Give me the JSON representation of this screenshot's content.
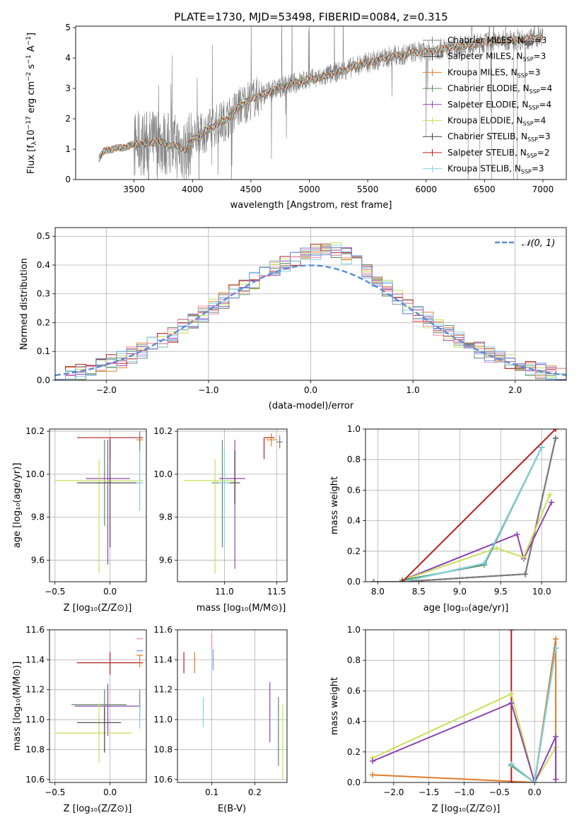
{
  "colors": {
    "Chabrier MILES": "#7f7f7f",
    "Salpeter MILES": "#202020",
    "Kroupa MILES": "#e07b2a",
    "Chabrier ELODIE": "#5c8a5c",
    "Salpeter ELODIE": "#8e44ad",
    "Kroupa ELODIE": "#c8e05a",
    "Chabrier STELIB": "#404040",
    "Salpeter STELIB": "#b22222",
    "Kroupa STELIB": "#7fd6e0",
    "gauss": "#5b8bd6",
    "pink": "#f08cb0",
    "blue": "#6a9ae8"
  },
  "chart_data": [
    {
      "id": "spectrum",
      "type": "line",
      "title": "PLATE=1730, MJD=53498, FIBERID=0084, z=0.315",
      "xlabel": "wavelength [Angstrom, rest frame]",
      "ylabel_main": "Flux [f",
      "ylabel_sub": "λ",
      "ylabel_rest": "10",
      "ylabel_exp": "-17",
      "ylabel_tail": " erg cm",
      "xlim": [
        3000,
        7200
      ],
      "ylim": [
        0,
        5.05
      ],
      "xticks": [
        3500,
        4000,
        4500,
        5000,
        5500,
        6000,
        6500,
        7000
      ],
      "yticks": [
        0,
        1,
        2,
        3,
        4,
        5
      ],
      "grid": false,
      "legend_position": "upper-right",
      "legend": [
        {
          "name": "Chabrier MILES",
          "nssp": "3"
        },
        {
          "name": "Salpeter MILES",
          "nssp": "3"
        },
        {
          "name": "Kroupa MILES",
          "nssp": "3"
        },
        {
          "name": "Chabrier ELODIE",
          "nssp": "4"
        },
        {
          "name": "Salpeter ELODIE",
          "nssp": "4"
        },
        {
          "name": "Kroupa ELODIE",
          "nssp": "4"
        },
        {
          "name": "Chabrier STELIB",
          "nssp": "3"
        },
        {
          "name": "Salpeter STELIB",
          "nssp": "2"
        },
        {
          "name": "Kroupa STELIB",
          "nssp": "3"
        }
      ],
      "continuum": [
        [
          3200,
          0.7
        ],
        [
          3250,
          0.95
        ],
        [
          3300,
          1.0
        ],
        [
          3400,
          1.05
        ],
        [
          3500,
          1.15
        ],
        [
          3600,
          1.2
        ],
        [
          3700,
          1.25
        ],
        [
          3800,
          1.15
        ],
        [
          3900,
          1.05
        ],
        [
          3950,
          1.0
        ],
        [
          4000,
          1.3
        ],
        [
          4100,
          1.55
        ],
        [
          4200,
          1.8
        ],
        [
          4300,
          2.0
        ],
        [
          4400,
          2.4
        ],
        [
          4500,
          2.65
        ],
        [
          4600,
          2.8
        ],
        [
          4700,
          2.95
        ],
        [
          4800,
          3.1
        ],
        [
          4900,
          3.2
        ],
        [
          5000,
          3.3
        ],
        [
          5100,
          3.35
        ],
        [
          5200,
          3.5
        ],
        [
          5300,
          3.6
        ],
        [
          5400,
          3.75
        ],
        [
          5500,
          3.85
        ],
        [
          5600,
          3.95
        ],
        [
          5700,
          4.05
        ],
        [
          5800,
          4.1
        ],
        [
          5900,
          4.2
        ],
        [
          6000,
          4.2
        ],
        [
          6200,
          4.35
        ],
        [
          6400,
          4.45
        ],
        [
          6600,
          4.55
        ],
        [
          6800,
          4.6
        ],
        [
          7000,
          4.7
        ]
      ]
    },
    {
      "id": "residuals",
      "type": "histogram",
      "xlabel": "(data-model)/error",
      "ylabel": "Normed distribution",
      "xlim": [
        -2.5,
        2.5
      ],
      "ylim": [
        0,
        0.53
      ],
      "xticks": [
        -2,
        -1,
        0,
        1,
        2
      ],
      "yticks": [
        0.0,
        0.1,
        0.2,
        0.3,
        0.4,
        0.5
      ],
      "grid": true,
      "legend_label": "𝒩(0, 1)",
      "legend_position": "upper-right",
      "bin_width": 0.1,
      "bin_start": -2.5,
      "base_values": [
        0.015,
        0.03,
        0.03,
        0.035,
        0.04,
        0.05,
        0.06,
        0.065,
        0.08,
        0.09,
        0.1,
        0.11,
        0.13,
        0.16,
        0.19,
        0.21,
        0.23,
        0.24,
        0.25,
        0.27,
        0.3,
        0.31,
        0.32,
        0.33,
        0.35,
        0.34,
        0.36,
        0.37,
        0.39,
        0.4,
        0.42,
        0.43,
        0.41,
        0.4,
        0.42,
        0.4,
        0.38,
        0.36,
        0.35,
        0.33,
        0.34,
        0.35,
        0.32,
        0.28,
        0.27,
        0.26,
        0.25,
        0.24,
        0.21,
        0.2,
        0.18,
        0.15,
        0.14,
        0.12,
        0.1,
        0.09,
        0.08,
        0.06,
        0.05,
        0.04,
        0.04,
        0.045,
        0.04,
        0.035,
        0.03,
        0.03,
        0.025,
        0.02,
        0.02,
        0.015,
        0.01,
        0.01,
        0.005,
        0.005,
        0.005,
        0.005,
        0.005,
        0.005,
        0.005,
        0.005
      ]
    },
    {
      "id": "age-vs-Z",
      "type": "errorbar",
      "xlabel": "Z [log₁₀(Z/Z⊙)]",
      "ylabel": "age  [log₁₀(age/yr)]",
      "xlim": [
        -0.55,
        0.33
      ],
      "ylim": [
        9.5,
        10.21
      ],
      "xticks": [
        -0.5,
        0.0
      ],
      "yticks": [
        9.6,
        9.8,
        10.0,
        10.2
      ],
      "grid": true,
      "points": [
        {
          "s": "Salpeter STELIB",
          "x": 0.0,
          "xe": [
            0.3,
            0.3
          ],
          "y": 10.17,
          "ye": [
            0.1,
            0.0
          ]
        },
        {
          "s": "Kroupa MILES",
          "x": 0.27,
          "xe": [
            0.03,
            0.03
          ],
          "y": 10.16,
          "ye": [
            0.02,
            0.02
          ]
        },
        {
          "s": "Chabrier MILES",
          "x": 0.27,
          "xe": [
            0.0,
            0.0
          ],
          "y": 10.15,
          "ye": [
            0.05,
            0.05
          ]
        },
        {
          "s": "Chabrier ELODIE",
          "x": -0.05,
          "xe": [
            0.1,
            0.1
          ],
          "y": 9.96,
          "ye": [
            0.2,
            0.2
          ]
        },
        {
          "s": "Salpeter ELODIE",
          "x": -0.02,
          "xe": [
            0.2,
            0.2
          ],
          "y": 9.98,
          "ye": [
            0.4,
            0.18
          ]
        },
        {
          "s": "Kroupa ELODIE",
          "x": -0.1,
          "xe": [
            0.4,
            0.4
          ],
          "y": 9.97,
          "ye": [
            0.43,
            0.1
          ]
        },
        {
          "s": "Chabrier STELIB",
          "x": 0.0,
          "xe": [
            0.3,
            0.3
          ],
          "y": 9.96,
          "ye": [
            0.3,
            0.2
          ]
        },
        {
          "s": "Kroupa STELIB",
          "x": 0.27,
          "xe": [
            0.03,
            0.03
          ],
          "y": 9.96,
          "ye": [
            0.13,
            0.15
          ]
        }
      ]
    },
    {
      "id": "age-vs-mass",
      "type": "errorbar",
      "xlabel": "mass [log₁₀(M/M⊙)]",
      "ylabel": "",
      "xlim": [
        10.55,
        11.6
      ],
      "ylim": [
        9.5,
        10.21
      ],
      "xticks": [
        11.0,
        11.5
      ],
      "yticks": [
        9.6,
        9.8,
        10.0,
        10.2
      ],
      "grid": true,
      "points": [
        {
          "s": "Salpeter STELIB",
          "x": 11.38,
          "xe": [
            0.0,
            0.1
          ],
          "y": 10.17,
          "ye": [
            0.1,
            0.0
          ]
        },
        {
          "s": "Kroupa MILES",
          "x": 11.45,
          "xe": [
            0.05,
            0.05
          ],
          "y": 10.16,
          "ye": [
            0.03,
            0.03
          ]
        },
        {
          "s": "Chabrier MILES",
          "x": 11.53,
          "xe": [
            0.03,
            0.03
          ],
          "y": 10.15,
          "ye": [
            0.03,
            0.03
          ]
        },
        {
          "s": "Chabrier ELODIE",
          "x": 10.98,
          "xe": [
            0.1,
            0.1
          ],
          "y": 9.96,
          "ye": [
            0.3,
            0.2
          ]
        },
        {
          "s": "Salpeter ELODIE",
          "x": 11.1,
          "xe": [
            0.15,
            0.1
          ],
          "y": 9.98,
          "ye": [
            0.42,
            0.18
          ]
        },
        {
          "s": "Kroupa ELODIE",
          "x": 10.91,
          "xe": [
            0.3,
            0.2
          ],
          "y": 9.97,
          "ye": [
            0.43,
            0.1
          ]
        },
        {
          "s": "Chabrier STELIB",
          "x": 11.1,
          "xe": [
            0.1,
            0.05
          ],
          "y": 9.96,
          "ye": [
            0.1,
            0.15
          ]
        },
        {
          "s": "Kroupa STELIB",
          "x": 11.0,
          "xe": [
            0.05,
            0.05
          ],
          "y": 9.96,
          "ye": [
            0.3,
            0.15
          ]
        }
      ]
    },
    {
      "id": "mass-weight-vs-age",
      "type": "line",
      "xlabel": "age  [log₁₀(age/yr)]",
      "ylabel": "mass weight",
      "xlim": [
        7.85,
        10.3
      ],
      "ylim": [
        0,
        1.0
      ],
      "xticks": [
        8.0,
        8.5,
        9.0,
        9.5,
        10.0
      ],
      "yticks": [
        0.0,
        0.2,
        0.4,
        0.6,
        0.8,
        1.0
      ],
      "grid": true,
      "series": [
        {
          "s": "Kroupa MILES",
          "x": [
            7.95,
            8.3,
            9.8,
            10.17
          ],
          "y": [
            0.0,
            0.0,
            0.05,
            0.94
          ]
        },
        {
          "s": "Salpeter MILES",
          "x": [
            7.95,
            8.3,
            9.8,
            10.17
          ],
          "y": [
            0.0,
            0.0,
            0.05,
            0.94
          ]
        },
        {
          "s": "Chabrier MILES",
          "x": [
            7.95,
            8.3,
            9.8,
            10.17
          ],
          "y": [
            0.0,
            0.0,
            0.05,
            0.94
          ]
        },
        {
          "s": "Salpeter ELODIE",
          "x": [
            8.3,
            9.7,
            9.78,
            10.12
          ],
          "y": [
            0.01,
            0.31,
            0.15,
            0.52
          ]
        },
        {
          "s": "Kroupa ELODIE",
          "x": [
            8.3,
            9.45,
            9.78,
            10.1
          ],
          "y": [
            0.01,
            0.22,
            0.16,
            0.57
          ]
        },
        {
          "s": "Chabrier ELODIE",
          "x": [
            8.3,
            9.3,
            10.0
          ],
          "y": [
            0.01,
            0.11,
            0.88
          ]
        },
        {
          "s": "Chabrier STELIB",
          "x": [
            8.3,
            9.3,
            10.0
          ],
          "y": [
            0.0,
            0.12,
            0.88
          ]
        },
        {
          "s": "Kroupa STELIB",
          "x": [
            8.3,
            9.3,
            10.0
          ],
          "y": [
            0.0,
            0.12,
            0.88
          ]
        },
        {
          "s": "Salpeter STELIB",
          "x": [
            8.3,
            10.17
          ],
          "y": [
            0.0,
            1.0
          ]
        }
      ]
    },
    {
      "id": "mass-vs-Z",
      "type": "errorbar",
      "xlabel": "Z [log₁₀(Z/Z⊙)]",
      "ylabel": "mass [log₁₀(M/M⊙)]",
      "xlim": [
        -0.55,
        0.33
      ],
      "ylim": [
        10.58,
        11.6
      ],
      "xticks": [
        -0.5,
        0.0
      ],
      "yticks": [
        10.6,
        10.8,
        11.0,
        11.2,
        11.4,
        11.6
      ],
      "grid": true,
      "points": [
        {
          "s": "Salpeter STELIB",
          "x": 0.0,
          "xe": [
            0.3,
            0.3
          ],
          "y": 11.38,
          "ye": [
            0.08,
            0.07
          ]
        },
        {
          "s": "pink",
          "x": 0.27,
          "xe": [
            0.03,
            0.03
          ],
          "y": 11.54,
          "ye": [
            0.0,
            0.0
          ]
        },
        {
          "s": "blue",
          "x": 0.27,
          "xe": [
            0.03,
            0.03
          ],
          "y": 11.46,
          "ye": [
            0.0,
            0.0
          ]
        },
        {
          "s": "Kroupa MILES",
          "x": 0.27,
          "xe": [
            0.03,
            0.03
          ],
          "y": 11.43,
          "ye": [
            0.08,
            0.0
          ]
        },
        {
          "s": "Chabrier ELODIE",
          "x": -0.05,
          "xe": [
            0.3,
            0.2
          ],
          "y": 11.1,
          "ye": [
            0.1,
            0.1
          ]
        },
        {
          "s": "Salpeter ELODIE",
          "x": -0.02,
          "xe": [
            0.3,
            0.3
          ],
          "y": 11.09,
          "ye": [
            0.2,
            0.15
          ]
        },
        {
          "s": "Kroupa ELODIE",
          "x": -0.1,
          "xe": [
            0.4,
            0.3
          ],
          "y": 10.91,
          "ye": [
            0.2,
            0.2
          ]
        },
        {
          "s": "Chabrier STELIB",
          "x": -0.05,
          "xe": [
            0.25,
            0.15
          ],
          "y": 10.98,
          "ye": [
            0.2,
            0.1
          ]
        },
        {
          "s": "Chabrier MILES",
          "x": 0.27,
          "xe": [
            0.0,
            0.0
          ],
          "y": 11.1,
          "ye": [
            0.1,
            0.1
          ]
        },
        {
          "s": "Kroupa STELIB",
          "x": 0.27,
          "xe": [
            0.0,
            0.0
          ],
          "y": 11.0,
          "ye": [
            0.06,
            0.1
          ]
        }
      ]
    },
    {
      "id": "mass-vs-EBV",
      "type": "errorbar",
      "xlabel": "E(B-V)",
      "ylabel": "",
      "xlim": [
        0.02,
        0.275
      ],
      "ylim": [
        10.58,
        11.6
      ],
      "xticks": [
        0.1,
        0.2
      ],
      "yticks": [
        10.6,
        10.8,
        11.0,
        11.2,
        11.4,
        11.6
      ],
      "grid": true,
      "points": [
        {
          "s": "Salpeter STELIB",
          "x": 0.035,
          "xe": [
            0,
            0
          ],
          "y": 11.38,
          "ye": [
            0.07,
            0.07
          ]
        },
        {
          "s": "Kroupa MILES",
          "x": 0.06,
          "xe": [
            0,
            0
          ],
          "y": 11.38,
          "ye": [
            0.07,
            0.07
          ]
        },
        {
          "s": "pink",
          "x": 0.1,
          "xe": [
            0,
            0
          ],
          "y": 11.52,
          "ye": [
            0.05,
            0.05
          ]
        },
        {
          "s": "blue",
          "x": 0.103,
          "xe": [
            0,
            0
          ],
          "y": 11.4,
          "ye": [
            0.07,
            0.07
          ]
        },
        {
          "s": "Kroupa STELIB",
          "x": 0.08,
          "xe": [
            0,
            0
          ],
          "y": 11.05,
          "ye": [
            0.1,
            0.1
          ]
        },
        {
          "s": "Salpeter ELODIE",
          "x": 0.235,
          "xe": [
            0,
            0
          ],
          "y": 11.05,
          "ye": [
            0.2,
            0.2
          ]
        },
        {
          "s": "Chabrier ELODIE",
          "x": 0.255,
          "xe": [
            0,
            0
          ],
          "y": 10.92,
          "ye": [
            0.23,
            0.23
          ]
        },
        {
          "s": "Kroupa ELODIE",
          "x": 0.265,
          "xe": [
            0,
            0
          ],
          "y": 10.85,
          "ye": [
            0.25,
            0.25
          ]
        }
      ]
    },
    {
      "id": "mass-weight-vs-Z",
      "type": "line",
      "xlabel": "Z [log₁₀(Z/Z⊙)]",
      "ylabel": "mass weight",
      "xlim": [
        -2.4,
        0.45
      ],
      "ylim": [
        0,
        1.0
      ],
      "xticks": [
        -2.0,
        -1.5,
        -1.0,
        -0.5,
        0.0
      ],
      "yticks": [
        0.0,
        0.2,
        0.4,
        0.6,
        0.8,
        1.0
      ],
      "grid": true,
      "series": [
        {
          "s": "Kroupa MILES",
          "x": [
            -2.3,
            0.0,
            0.3,
            0.3
          ],
          "y": [
            0.05,
            0.0,
            0.94,
            0.02
          ]
        },
        {
          "s": "Salpeter STELIB",
          "x": [
            -0.33,
            -0.33
          ],
          "y": [
            0.0,
            1.0
          ]
        },
        {
          "s": "Kroupa ELODIE",
          "x": [
            -2.3,
            -0.33,
            0.0,
            0.3,
            0.3
          ],
          "y": [
            0.16,
            0.58,
            0.0,
            0.23,
            0.02
          ]
        },
        {
          "s": "Salpeter ELODIE",
          "x": [
            -2.3,
            -0.33,
            0.0,
            0.3,
            0.3
          ],
          "y": [
            0.14,
            0.52,
            0.0,
            0.3,
            0.02
          ]
        },
        {
          "s": "Chabrier ELODIE",
          "x": [
            -0.33,
            0.0,
            0.3
          ],
          "y": [
            0.11,
            0.0,
            0.88
          ]
        },
        {
          "s": "Chabrier STELIB",
          "x": [
            -0.33,
            0.0,
            0.3
          ],
          "y": [
            0.12,
            0.0,
            0.88
          ]
        },
        {
          "s": "Kroupa STELIB",
          "x": [
            -0.33,
            0.0,
            0.3
          ],
          "y": [
            0.12,
            0.0,
            0.88
          ]
        }
      ]
    }
  ]
}
